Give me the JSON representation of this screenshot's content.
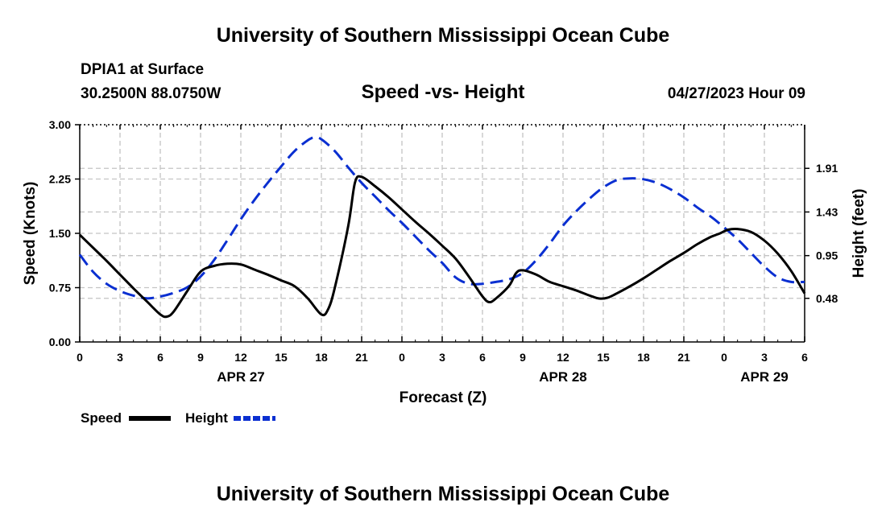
{
  "header": {
    "title": "University of Southern Mississippi Ocean Cube",
    "station": "DPIA1 at Surface",
    "coordinates": "30.2500N  88.0750W",
    "subtitle": "Speed -vs- Height",
    "datetime": "04/27/2023 Hour 09",
    "footer_title": "University of Southern Mississippi Ocean Cube"
  },
  "chart_data": {
    "type": "line",
    "title": "Speed -vs- Height",
    "xlabel": "Forecast (Z)",
    "ylabel_left": "Speed (Knots)",
    "ylabel_right": "Height (feet)",
    "x_range": [
      0,
      54
    ],
    "x_ticks": [
      {
        "x": 0,
        "label": "0"
      },
      {
        "x": 3,
        "label": "3"
      },
      {
        "x": 6,
        "label": "6"
      },
      {
        "x": 9,
        "label": "9"
      },
      {
        "x": 12,
        "label": "12"
      },
      {
        "x": 15,
        "label": "15"
      },
      {
        "x": 18,
        "label": "18"
      },
      {
        "x": 21,
        "label": "21"
      },
      {
        "x": 24,
        "label": "0"
      },
      {
        "x": 27,
        "label": "3"
      },
      {
        "x": 30,
        "label": "6"
      },
      {
        "x": 33,
        "label": "9"
      },
      {
        "x": 36,
        "label": "12"
      },
      {
        "x": 39,
        "label": "15"
      },
      {
        "x": 42,
        "label": "18"
      },
      {
        "x": 45,
        "label": "21"
      },
      {
        "x": 48,
        "label": "0"
      },
      {
        "x": 51,
        "label": "3"
      },
      {
        "x": 54,
        "label": "6"
      }
    ],
    "date_labels": [
      {
        "x": 12,
        "label": "APR 27"
      },
      {
        "x": 36,
        "label": "APR 28"
      },
      {
        "x": 51,
        "label": "APR 29"
      }
    ],
    "y_left": {
      "min": 0,
      "max": 3,
      "ticks": [
        0,
        0.75,
        1.5,
        2.25,
        3
      ],
      "tick_labels": [
        "0.00",
        "0.75",
        "1.50",
        "2.25",
        "3.00"
      ]
    },
    "y_right": {
      "min": 0.0,
      "max": 2.39,
      "ticks": [
        0.48,
        0.95,
        1.43,
        1.91
      ],
      "tick_labels": [
        "0.48",
        "0.95",
        "1.43",
        "1.91"
      ]
    },
    "grid": true,
    "series": [
      {
        "name": "Speed",
        "axis": "left",
        "color": "#000000",
        "dash": "solid",
        "points": [
          [
            0,
            1.48
          ],
          [
            1,
            1.3
          ],
          [
            2,
            1.12
          ],
          [
            3,
            0.93
          ],
          [
            4,
            0.74
          ],
          [
            5,
            0.56
          ],
          [
            6,
            0.38
          ],
          [
            6.5,
            0.35
          ],
          [
            7,
            0.42
          ],
          [
            8,
            0.7
          ],
          [
            9,
            0.97
          ],
          [
            10,
            1.05
          ],
          [
            11,
            1.08
          ],
          [
            12,
            1.07
          ],
          [
            13,
            1.0
          ],
          [
            14,
            0.93
          ],
          [
            15,
            0.85
          ],
          [
            16,
            0.77
          ],
          [
            17,
            0.6
          ],
          [
            18,
            0.38
          ],
          [
            18.5,
            0.45
          ],
          [
            19,
            0.75
          ],
          [
            20,
            1.6
          ],
          [
            20.5,
            2.2
          ],
          [
            21,
            2.28
          ],
          [
            22,
            2.15
          ],
          [
            23,
            2.0
          ],
          [
            24,
            1.83
          ],
          [
            25,
            1.66
          ],
          [
            26,
            1.5
          ],
          [
            27,
            1.33
          ],
          [
            28,
            1.15
          ],
          [
            29,
            0.9
          ],
          [
            30,
            0.63
          ],
          [
            30.5,
            0.55
          ],
          [
            31,
            0.6
          ],
          [
            32,
            0.78
          ],
          [
            32.5,
            0.95
          ],
          [
            33,
            0.99
          ],
          [
            34,
            0.93
          ],
          [
            35,
            0.83
          ],
          [
            36,
            0.77
          ],
          [
            37,
            0.71
          ],
          [
            38,
            0.64
          ],
          [
            38.7,
            0.6
          ],
          [
            39.3,
            0.61
          ],
          [
            40,
            0.67
          ],
          [
            41,
            0.77
          ],
          [
            42,
            0.88
          ],
          [
            43,
            1.0
          ],
          [
            44,
            1.12
          ],
          [
            45,
            1.23
          ],
          [
            46,
            1.35
          ],
          [
            47,
            1.45
          ],
          [
            47.7,
            1.5
          ],
          [
            48.3,
            1.55
          ],
          [
            49,
            1.56
          ],
          [
            50,
            1.52
          ],
          [
            51,
            1.4
          ],
          [
            52,
            1.22
          ],
          [
            53,
            0.98
          ],
          [
            54,
            0.67
          ]
        ]
      },
      {
        "name": "Height",
        "axis": "right",
        "color": "#0a2fd1",
        "dash": "dashed",
        "points": [
          [
            0,
            0.96
          ],
          [
            1,
            0.77
          ],
          [
            2,
            0.64
          ],
          [
            3,
            0.56
          ],
          [
            4,
            0.51
          ],
          [
            5,
            0.48
          ],
          [
            6,
            0.5
          ],
          [
            7,
            0.54
          ],
          [
            8,
            0.6
          ],
          [
            9,
            0.72
          ],
          [
            10,
            0.9
          ],
          [
            11,
            1.12
          ],
          [
            12,
            1.35
          ],
          [
            13,
            1.56
          ],
          [
            14,
            1.75
          ],
          [
            15,
            1.93
          ],
          [
            16,
            2.1
          ],
          [
            17,
            2.22
          ],
          [
            17.5,
            2.25
          ],
          [
            18,
            2.23
          ],
          [
            19,
            2.1
          ],
          [
            20,
            1.92
          ],
          [
            21,
            1.75
          ],
          [
            22,
            1.6
          ],
          [
            23,
            1.45
          ],
          [
            24,
            1.31
          ],
          [
            25,
            1.16
          ],
          [
            26,
            1.01
          ],
          [
            27,
            0.87
          ],
          [
            28,
            0.71
          ],
          [
            29,
            0.64
          ],
          [
            30,
            0.64
          ],
          [
            31,
            0.66
          ],
          [
            32,
            0.69
          ],
          [
            33,
            0.76
          ],
          [
            34,
            0.9
          ],
          [
            35,
            1.08
          ],
          [
            36,
            1.28
          ],
          [
            37,
            1.44
          ],
          [
            38,
            1.58
          ],
          [
            39,
            1.7
          ],
          [
            40,
            1.78
          ],
          [
            41,
            1.8
          ],
          [
            42,
            1.79
          ],
          [
            43,
            1.75
          ],
          [
            44,
            1.68
          ],
          [
            45,
            1.59
          ],
          [
            46,
            1.48
          ],
          [
            47,
            1.38
          ],
          [
            48,
            1.26
          ],
          [
            49,
            1.13
          ],
          [
            50,
            0.98
          ],
          [
            51,
            0.83
          ],
          [
            52,
            0.71
          ],
          [
            53,
            0.66
          ],
          [
            54,
            0.66
          ]
        ]
      }
    ],
    "legend": {
      "placement": "bottom-left",
      "items": [
        {
          "label": "Speed",
          "color": "#000000",
          "dash": "solid"
        },
        {
          "label": "Height",
          "color": "#0a2fd1",
          "dash": "dashed"
        }
      ]
    }
  }
}
